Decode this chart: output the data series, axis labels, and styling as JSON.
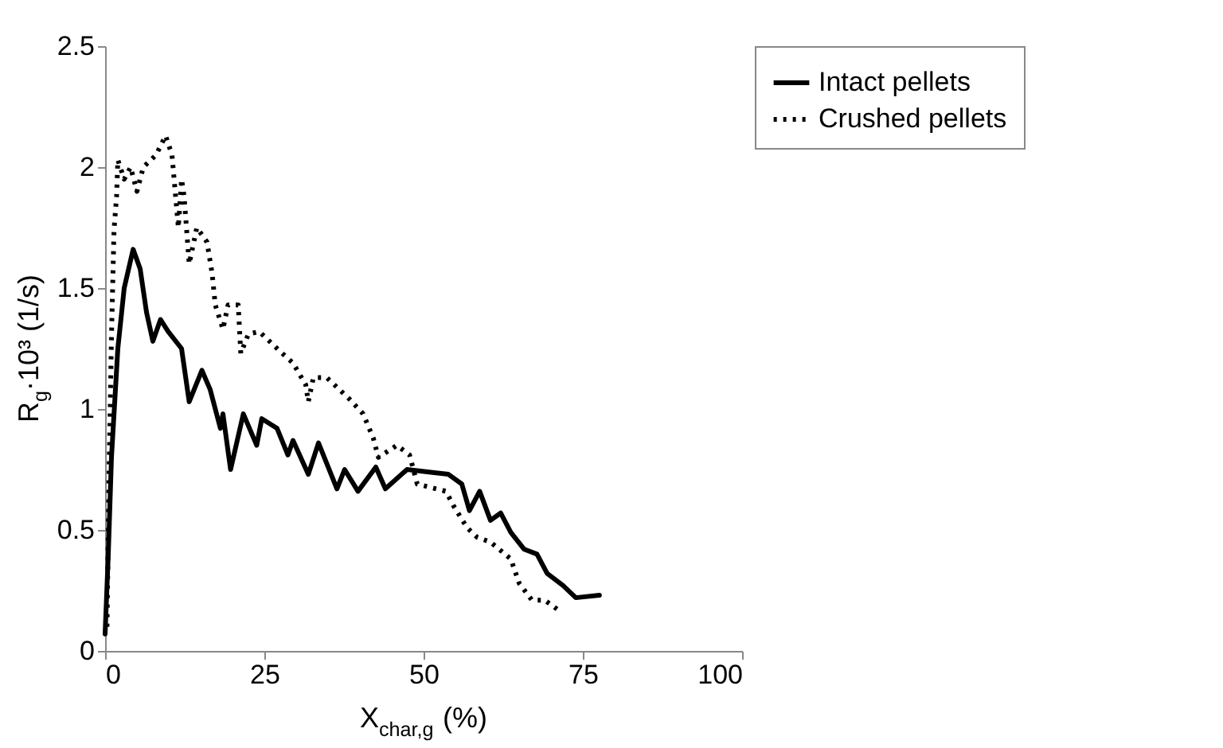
{
  "chart_data": {
    "type": "line",
    "xlabel": "X$_{char,g}$ (%)",
    "ylabel": "R$_{g}$·10³ (1/s)",
    "xlim": [
      0,
      100
    ],
    "xticks": [
      0,
      25,
      50,
      75,
      100
    ],
    "ylim": [
      0,
      2.5
    ],
    "yticks": [
      0,
      0.5,
      1,
      1.5,
      2,
      2.5
    ],
    "grid": false,
    "legend": "right",
    "series": [
      {
        "name": "Intact pellets",
        "color": "#000000",
        "line_style": "solid",
        "x": [
          0,
          0.5,
          1,
          2,
          3,
          4.4,
          5.5,
          6.5,
          7.5,
          8.7,
          9.9,
          12,
          13.2,
          15.2,
          16.5,
          18.1,
          18.5,
          19.7,
          21.7,
          23.8,
          24.6,
          27,
          28.7,
          29.5,
          31.9,
          33.5,
          36.4,
          37.6,
          39.7,
          42.5,
          44,
          47.4,
          50.6,
          53.9,
          56,
          57.2,
          58.8,
          60.5,
          62.1,
          63.7,
          65.8,
          67.8,
          69.4,
          71.9,
          73.9,
          77.6
        ],
        "values": [
          0.07,
          0.4,
          0.8,
          1.25,
          1.5,
          1.66,
          1.58,
          1.4,
          1.28,
          1.37,
          1.32,
          1.25,
          1.03,
          1.16,
          1.08,
          0.92,
          0.98,
          0.75,
          0.98,
          0.85,
          0.96,
          0.92,
          0.81,
          0.87,
          0.73,
          0.86,
          0.67,
          0.75,
          0.66,
          0.76,
          0.67,
          0.75,
          0.74,
          0.73,
          0.69,
          0.58,
          0.66,
          0.54,
          0.57,
          0.49,
          0.42,
          0.4,
          0.32,
          0.27,
          0.22,
          0.23
        ]
      },
      {
        "name": "Crushed pellets",
        "color": "#000000",
        "line_style": "dotted",
        "x": [
          0.3,
          0.6,
          1,
          1.4,
          1.8,
          2,
          3,
          4,
          5,
          6,
          8,
          9.5,
          10.5,
          11.5,
          12,
          12.4,
          12.8,
          13.2,
          14.4,
          16,
          16.8,
          17.3,
          18.5,
          19.3,
          20.9,
          21.3,
          22.5,
          24.2,
          27.4,
          29.5,
          31.5,
          31.9,
          32.7,
          34.8,
          36.8,
          38.4,
          40.5,
          42.1,
          42.9,
          45.8,
          47.8,
          49,
          53.5,
          54.7,
          56.8,
          58.4,
          60.5,
          63.7,
          65,
          67,
          69,
          71.1
        ],
        "values": [
          0.1,
          0.7,
          1.3,
          1.74,
          1.88,
          2.03,
          1.95,
          2.0,
          1.9,
          2.0,
          2.05,
          2.13,
          2.05,
          1.75,
          1.95,
          1.88,
          1.74,
          1.6,
          1.75,
          1.69,
          1.56,
          1.43,
          1.33,
          1.43,
          1.43,
          1.23,
          1.31,
          1.32,
          1.24,
          1.19,
          1.1,
          1.03,
          1.13,
          1.13,
          1.08,
          1.04,
          0.98,
          0.88,
          0.8,
          0.85,
          0.81,
          0.69,
          0.66,
          0.6,
          0.51,
          0.47,
          0.45,
          0.38,
          0.28,
          0.21,
          0.21,
          0.17
        ]
      }
    ]
  }
}
